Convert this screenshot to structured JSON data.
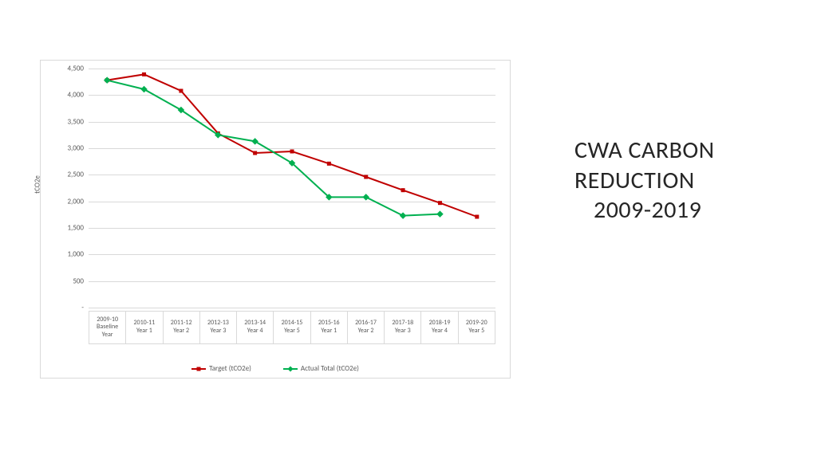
{
  "title": {
    "line1": "CWA CARBON",
    "line2": "REDUCTION",
    "line3": "2009-2019",
    "fontsize": 30,
    "color": "#262626"
  },
  "chart": {
    "type": "line",
    "background_color": "#ffffff",
    "border_color": "#d9d9d9",
    "grid_color": "#d9d9d9",
    "tick_fontsize": 9,
    "tick_color": "#595959",
    "ylabel": "tCO2e",
    "ylim": [
      0,
      4500
    ],
    "ytick_step": 500,
    "yticks": [
      "-",
      "500",
      "1,000",
      "1,500",
      "2,000",
      "2,500",
      "3,000",
      "3,500",
      "4,000",
      "4,500"
    ],
    "categories": [
      {
        "p": "2009-10",
        "s": "Baseline Year"
      },
      {
        "p": "2010-11",
        "s": "Year 1"
      },
      {
        "p": "2011-12",
        "s": "Year 2"
      },
      {
        "p": "2012-13",
        "s": "Year 3"
      },
      {
        "p": "2013-14",
        "s": "Year 4"
      },
      {
        "p": "2014-15",
        "s": "Year 5"
      },
      {
        "p": "2015-16",
        "s": "Year 1"
      },
      {
        "p": "2016-17",
        "s": "Year 2"
      },
      {
        "p": "2017-18",
        "s": "Year 3"
      },
      {
        "p": "2018-19",
        "s": "Year 4"
      },
      {
        "p": "2019-20",
        "s": "Year 5"
      }
    ],
    "series": [
      {
        "name": "Target (tCO2e)",
        "color": "#c00000",
        "marker": "square",
        "line_width": 2,
        "values": [
          4280,
          4390,
          4080,
          3280,
          2910,
          2940,
          2710,
          2460,
          2210,
          1970,
          1710
        ]
      },
      {
        "name": "Actual Total (tCO2e)",
        "color": "#00b050",
        "marker": "diamond",
        "line_width": 2,
        "values": [
          4280,
          4110,
          3720,
          3250,
          3130,
          2720,
          2080,
          2080,
          1730,
          1760,
          null
        ]
      }
    ]
  }
}
